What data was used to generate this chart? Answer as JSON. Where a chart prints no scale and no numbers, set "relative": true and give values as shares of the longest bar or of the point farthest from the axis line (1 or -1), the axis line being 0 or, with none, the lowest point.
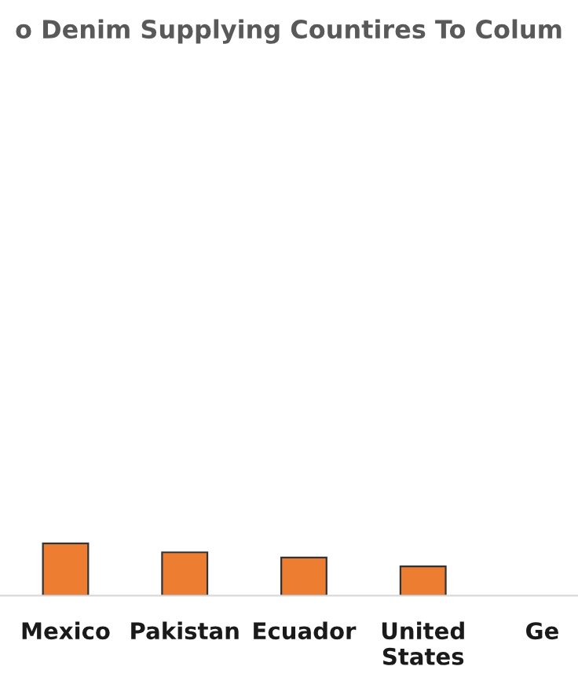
{
  "chart_data": {
    "type": "bar",
    "title": "o Denim Supplying Countires To Colum",
    "categories": [
      "Mexico",
      "Pakistan",
      "Ecuador",
      "United\nStates",
      "Ge"
    ],
    "values": [
      1,
      0.83,
      0.73,
      0.56,
      null
    ],
    "color": "#ed7d31",
    "relative": true,
    "grid": false,
    "legend": false
  }
}
